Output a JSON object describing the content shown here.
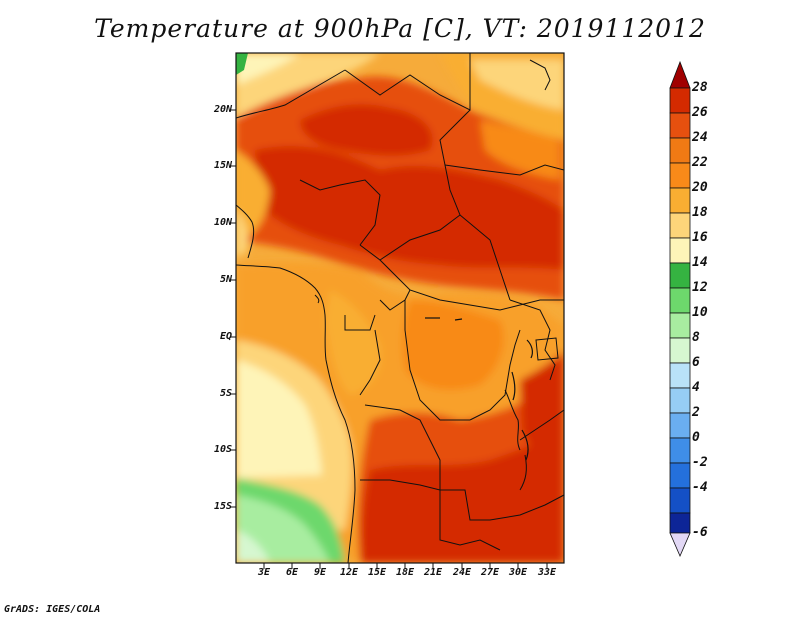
{
  "title": "Temperature at 900hPa [C], VT: 2019112012",
  "credit": "GrADS: IGES/COLA",
  "map": {
    "lat_ticks": [
      "20N",
      "15N",
      "10N",
      "5N",
      "EQ",
      "5S",
      "10S",
      "15S"
    ],
    "lon_ticks": [
      "3E",
      "6E",
      "9E",
      "12E",
      "15E",
      "18E",
      "21E",
      "24E",
      "27E",
      "30E",
      "33E"
    ]
  },
  "colorbar": {
    "labels": [
      "28",
      "26",
      "24",
      "22",
      "20",
      "18",
      "16",
      "14",
      "12",
      "10",
      "8",
      "6",
      "4",
      "2",
      "0",
      "-2",
      "-4",
      "-6"
    ],
    "colors": [
      "#a00000",
      "#d42a00",
      "#e95c0b",
      "#f88a19",
      "#f9ae32",
      "#fdd57a",
      "#fef4b8",
      "#35b341",
      "#6dd86c",
      "#a8eda0",
      "#d6f7d0",
      "#b9e2f8",
      "#96cdf4",
      "#6aaef0",
      "#3f8ee8",
      "#2470dc",
      "#1450c6",
      "#0d2597",
      "#140a63",
      "#e2d8f5"
    ]
  }
}
